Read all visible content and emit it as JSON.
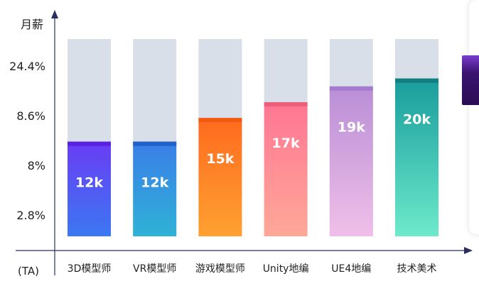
{
  "chart_data": {
    "type": "bar",
    "ylabel": "月薪",
    "xlabel": "(TA)",
    "yticks": [
      "24.4%",
      "8.6%",
      "8%",
      "2.8%"
    ],
    "categories": [
      "3D模型师",
      "VR模型师",
      "游戏模型师",
      "Unity地编",
      "UE4地编",
      "技术美术"
    ],
    "values": [
      12,
      12,
      15,
      17,
      19,
      20
    ],
    "value_labels": [
      "12k",
      "12k",
      "15k",
      "17k",
      "19k",
      "20k"
    ],
    "ymax": 25,
    "colors": [
      {
        "top": "#6a3cf5",
        "bottom": "#3b78f2",
        "cap": "#5a22e0"
      },
      {
        "top": "#3a7ee8",
        "bottom": "#2fb2d6",
        "cap": "#2260c9"
      },
      {
        "top": "#ff6a1e",
        "bottom": "#ffa131",
        "cap": "#f25a10"
      },
      {
        "top": "#ff7693",
        "bottom": "#ffa898",
        "cap": "#ef5d7d"
      },
      {
        "top": "#b98ed6",
        "bottom": "#f0bfe8",
        "cap": "#a57bd0"
      },
      {
        "top": "#199c9c",
        "bottom": "#6deacb",
        "cap": "#117f80"
      }
    ],
    "track_color": "#d9dfe8",
    "axis_color": "#2a2e5e"
  }
}
